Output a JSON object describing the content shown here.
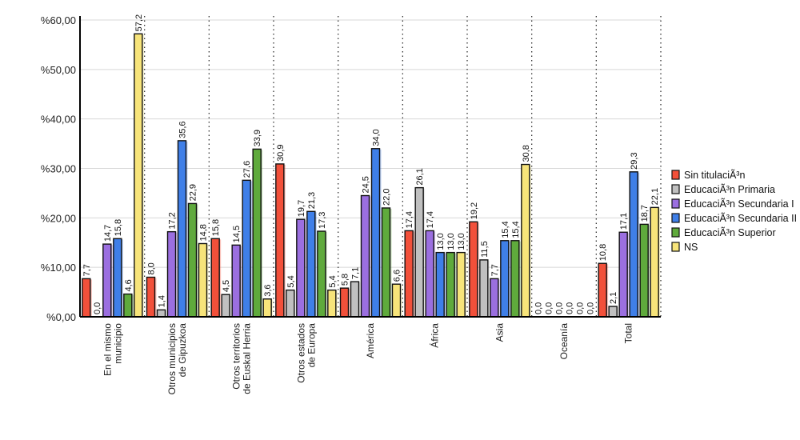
{
  "chart_data": {
    "type": "bar",
    "title": "",
    "xlabel": "",
    "ylabel": "",
    "ylim": [
      0,
      60
    ],
    "yticks": [
      "%0,00",
      "%10,00",
      "%20,00",
      "%30,00",
      "%40,00",
      "%50,00",
      "%60,00"
    ],
    "grid": true,
    "legend_position": "right",
    "categories": [
      "En el mismo municipio",
      "Otros municipios de Gipuzkoa",
      "Otros territorios de Euskal Herria",
      "Otros estados de Europa",
      "América",
      "África",
      "Asia",
      "Oceanía",
      "Total"
    ],
    "series": [
      {
        "name": "Sin titulaciÃ³n",
        "color": "#f2503a",
        "values": [
          7.7,
          8.0,
          15.8,
          30.9,
          5.8,
          17.4,
          19.2,
          0.0,
          10.8
        ]
      },
      {
        "name": "EducaciÃ³n Primaria",
        "color": "#c0c0c0",
        "values": [
          0.0,
          1.4,
          4.5,
          5.4,
          7.1,
          26.1,
          11.5,
          0.0,
          2.1
        ]
      },
      {
        "name": "EducaciÃ³n Secundaria I",
        "color": "#9b6fe0",
        "values": [
          14.7,
          17.2,
          14.5,
          19.7,
          24.5,
          17.4,
          7.7,
          0.0,
          17.1
        ]
      },
      {
        "name": "EducaciÃ³n Secundaria II",
        "color": "#3f7fe8",
        "values": [
          15.8,
          35.6,
          27.6,
          21.3,
          34.0,
          13.0,
          15.4,
          0.0,
          29.3
        ]
      },
      {
        "name": "EducaciÃ³n Superior",
        "color": "#5faa3c",
        "values": [
          4.6,
          22.9,
          33.9,
          17.3,
          22.0,
          13.0,
          15.4,
          0.0,
          18.7
        ]
      },
      {
        "name": "NS",
        "color": "#f7e47a",
        "values": [
          57.2,
          14.8,
          3.6,
          5.4,
          6.6,
          13.0,
          30.8,
          0.0,
          22.1
        ]
      }
    ]
  }
}
